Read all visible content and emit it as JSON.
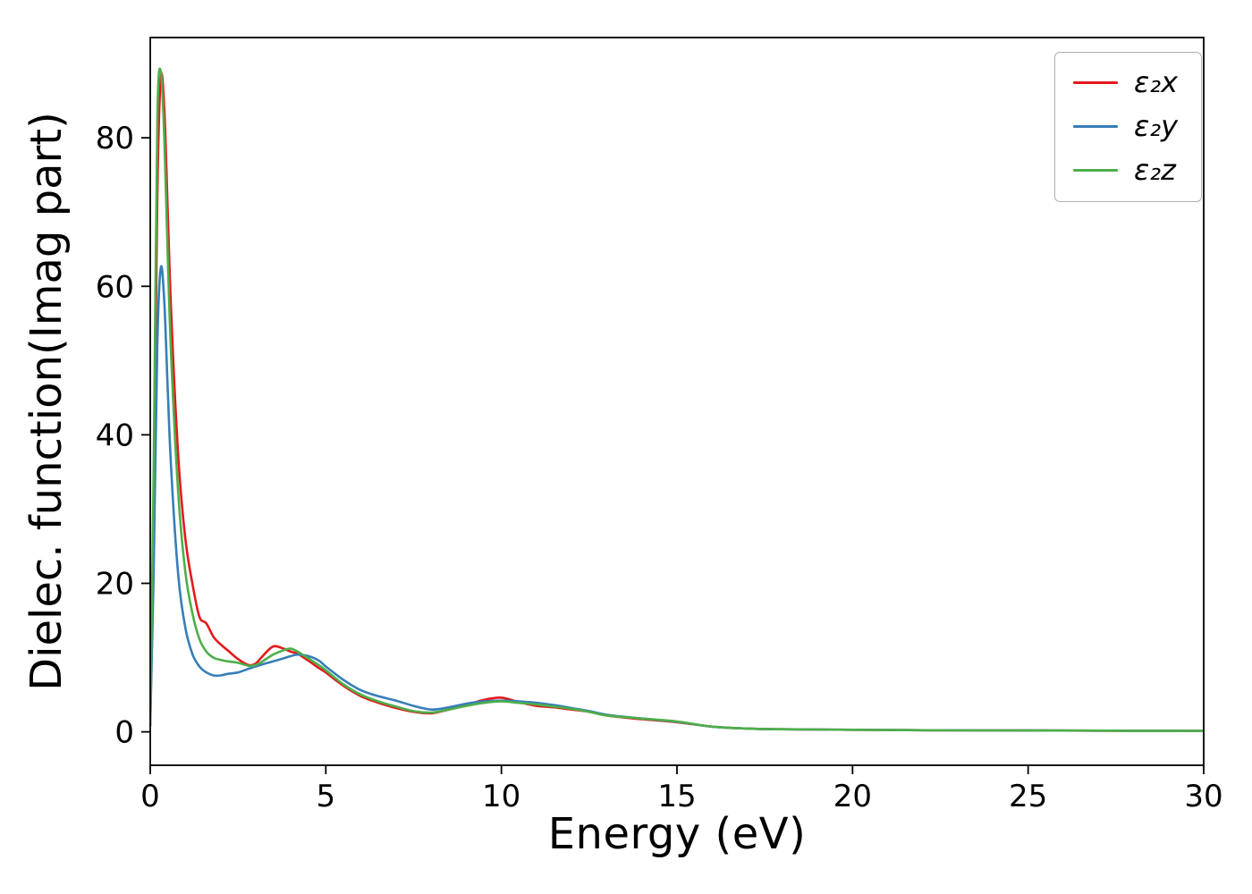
{
  "chart_data": {
    "type": "line",
    "title": "",
    "xlabel": "Energy (eV)",
    "ylabel": "Dielec. function(Imag part)",
    "xlim": [
      0,
      30
    ],
    "ylim": [
      -4.5,
      93.5
    ],
    "xticks": [
      0,
      5,
      10,
      15,
      20,
      25,
      30
    ],
    "yticks": [
      0,
      20,
      40,
      60,
      80
    ],
    "grid": false,
    "legend_position": "upper right",
    "x": [
      0,
      0.1,
      0.2,
      0.3,
      0.4,
      0.5,
      0.6,
      0.8,
      1.0,
      1.2,
      1.4,
      1.6,
      1.8,
      2.0,
      2.2,
      2.5,
      2.8,
      3.0,
      3.2,
      3.5,
      3.8,
      4.0,
      4.2,
      4.5,
      4.8,
      5.0,
      5.5,
      6.0,
      6.5,
      7.0,
      7.5,
      8.0,
      8.5,
      9.0,
      9.5,
      10.0,
      10.5,
      11.0,
      11.5,
      12.0,
      12.5,
      13.0,
      14.0,
      15.0,
      16.0,
      17.0,
      18.0,
      20.0,
      22.0,
      25.0,
      28.0,
      30.0
    ],
    "series": [
      {
        "name": "ε₂x",
        "color": "#e41a1c",
        "values": [
          1.0,
          30,
          72,
          88,
          84,
          70,
          56,
          37,
          26,
          20,
          15.5,
          14.6,
          12.8,
          11.8,
          11.0,
          9.8,
          9.0,
          9.2,
          10.2,
          11.5,
          11.2,
          10.8,
          10.5,
          9.6,
          8.6,
          8.0,
          6.2,
          4.8,
          3.9,
          3.2,
          2.7,
          2.5,
          3.0,
          3.6,
          4.3,
          4.6,
          4.0,
          3.5,
          3.3,
          3.0,
          2.7,
          2.2,
          1.7,
          1.3,
          0.7,
          0.45,
          0.35,
          0.28,
          0.22,
          0.18,
          0.15,
          0.14
        ]
      },
      {
        "name": "ε₂y",
        "color": "#377eb8",
        "values": [
          0.8,
          22,
          52,
          62.5,
          58,
          46,
          35,
          21,
          14,
          10.5,
          8.8,
          8.0,
          7.6,
          7.6,
          7.8,
          8.0,
          8.5,
          8.8,
          9.1,
          9.5,
          9.9,
          10.2,
          10.4,
          10.2,
          9.6,
          8.8,
          7.0,
          5.6,
          4.8,
          4.2,
          3.5,
          3.0,
          3.3,
          3.8,
          4.1,
          4.2,
          4.1,
          3.9,
          3.6,
          3.2,
          2.8,
          2.3,
          1.8,
          1.35,
          0.7,
          0.45,
          0.35,
          0.28,
          0.22,
          0.18,
          0.15,
          0.14
        ]
      },
      {
        "name": "ε₂z",
        "color": "#4daf4a",
        "values": [
          1.2,
          36,
          82,
          89,
          80,
          64,
          50,
          32,
          21.5,
          16,
          12.5,
          10.8,
          10.0,
          9.7,
          9.5,
          9.3,
          8.9,
          9.0,
          9.5,
          10.4,
          11.0,
          11.2,
          10.8,
          9.9,
          9.0,
          8.3,
          6.4,
          5.0,
          4.1,
          3.4,
          2.8,
          2.6,
          3.0,
          3.5,
          3.9,
          4.1,
          3.9,
          3.7,
          3.4,
          3.1,
          2.7,
          2.2,
          1.8,
          1.4,
          0.7,
          0.45,
          0.35,
          0.28,
          0.22,
          0.18,
          0.15,
          0.14
        ]
      }
    ]
  }
}
